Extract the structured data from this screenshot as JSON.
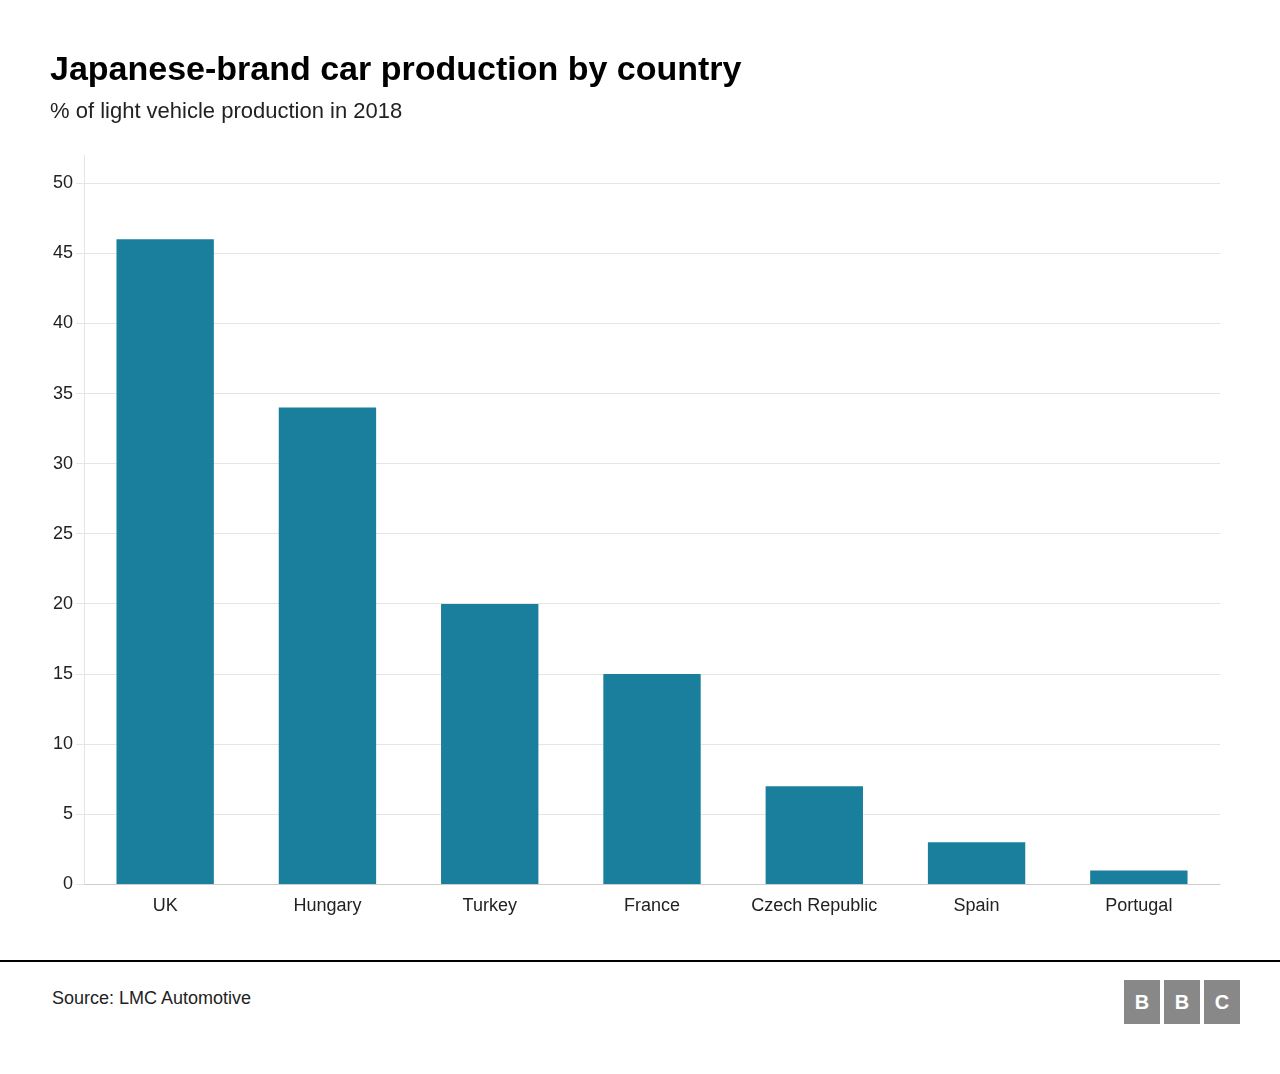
{
  "chart_data": {
    "type": "bar",
    "title": "Japanese-brand car production by country",
    "subtitle": "% of light vehicle production in 2018",
    "categories": [
      "UK",
      "Hungary",
      "Turkey",
      "France",
      "Czech Republic",
      "Spain",
      "Portugal"
    ],
    "values": [
      46,
      34,
      20,
      15,
      7,
      3,
      1
    ],
    "color": "#1a7f9c",
    "ylim": [
      0,
      52
    ],
    "yticks": [
      0,
      5,
      10,
      15,
      20,
      25,
      30,
      35,
      40,
      45,
      50
    ],
    "grid": true,
    "source": "Source: LMC Automotive",
    "logo": [
      "B",
      "B",
      "C"
    ]
  }
}
